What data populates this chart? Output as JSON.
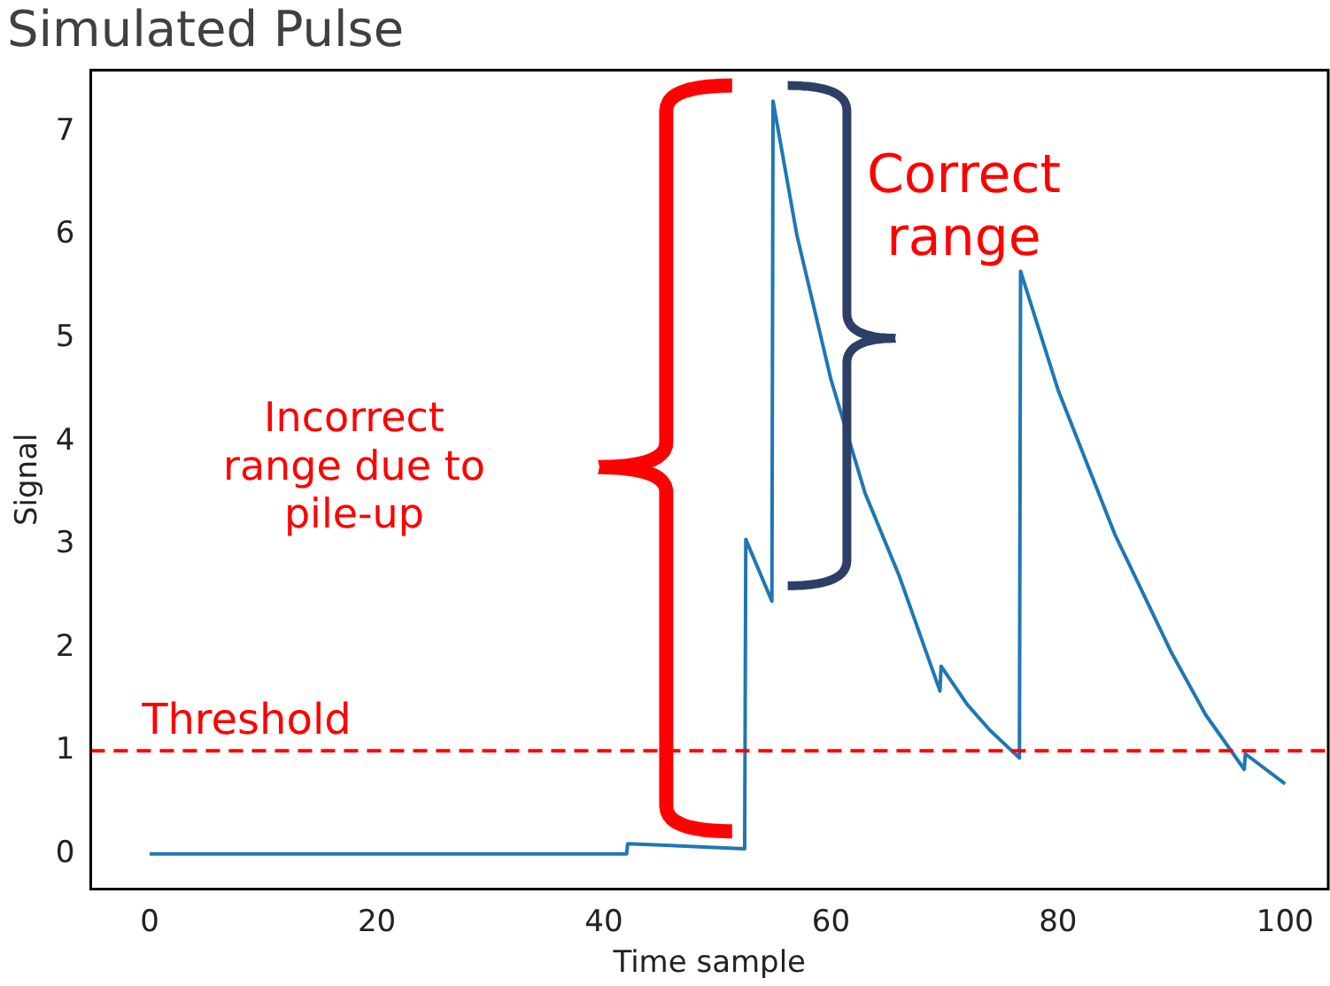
{
  "chart_data": {
    "type": "line",
    "title": "Simulated Pulse",
    "xlabel": "Time sample",
    "ylabel": "Signal",
    "x": [
      0,
      42,
      42.1,
      52.4,
      52.5,
      54.8,
      54.9,
      57,
      60,
      63,
      66,
      69.6,
      69.7,
      72,
      74,
      76.6,
      76.7,
      80,
      85,
      90,
      93,
      96.4,
      96.5,
      100
    ],
    "series": [
      {
        "color": "#1f77b4",
        "values": [
          0,
          0,
          0.1,
          0.05,
          3.05,
          2.45,
          7.3,
          6.0,
          4.6,
          3.5,
          2.7,
          1.58,
          1.82,
          1.45,
          1.2,
          0.93,
          5.65,
          4.5,
          3.1,
          1.95,
          1.35,
          0.82,
          0.97,
          0.68
        ]
      }
    ],
    "xlim": [
      -5.2,
      103.8
    ],
    "xticks": [
      0,
      20,
      40,
      60,
      80,
      100
    ],
    "ylim": [
      -0.34,
      7.6
    ],
    "yticks": [
      0,
      1,
      2,
      3,
      4,
      5,
      6,
      7
    ],
    "ref_lines": [
      {
        "axis": "y",
        "value": 1,
        "label": "Threshold",
        "color": "#ff0000",
        "line_style": "dashed"
      }
    ],
    "annotations": [
      "Correct range",
      "Incorrect range due to pile-up"
    ],
    "grid": false,
    "legend": false,
    "marker": "none",
    "line_style": "solid"
  }
}
